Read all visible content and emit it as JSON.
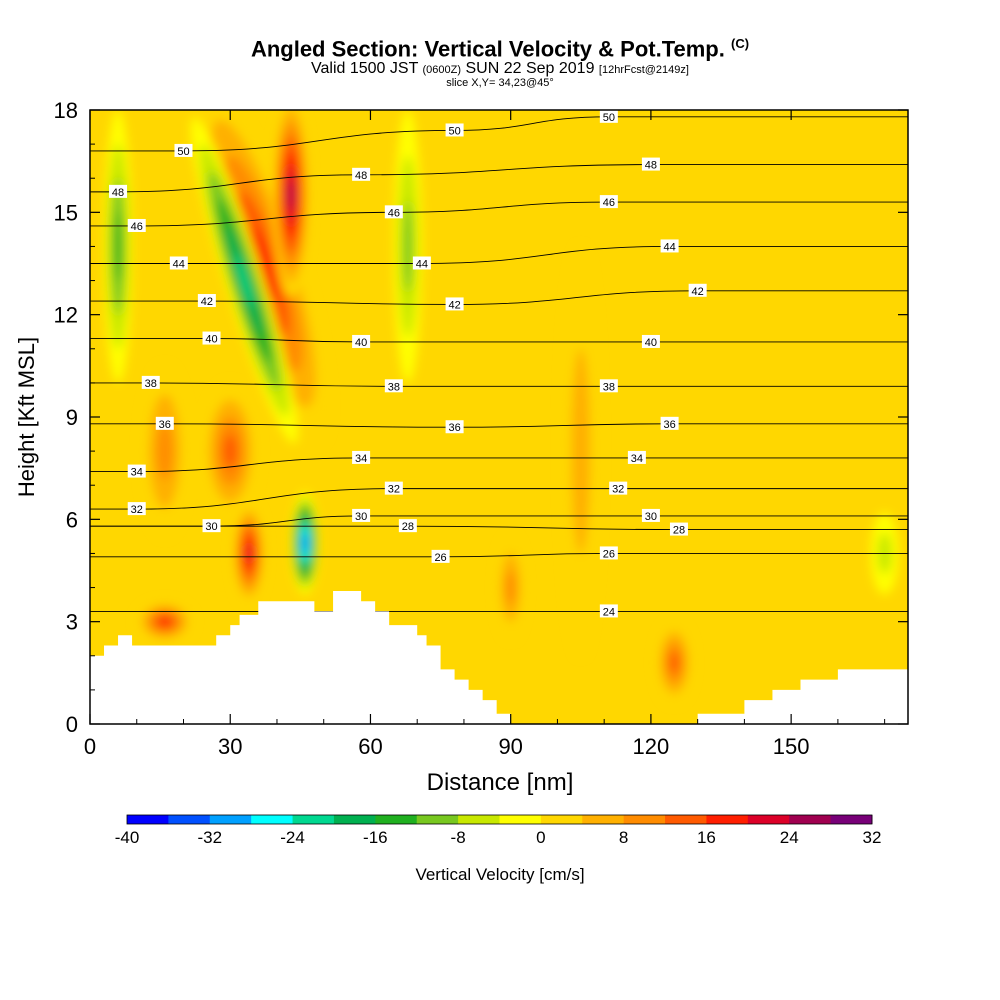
{
  "header": {
    "title": "Angled Section: Vertical Velocity & Pot.Temp.",
    "copyright": "(C)",
    "valid_prefix": "Valid 1500 JST",
    "utc": "(0600Z)",
    "valid_date": "SUN 22 Sep 2019",
    "forecast": "[12hrFcst@2149z]",
    "slice": "slice X,Y= 34,23@45°"
  },
  "chart_data": {
    "type": "heatmap",
    "xlabel": "Distance [nm]",
    "ylabel": "Height [Kft MSL]",
    "xlim": [
      0,
      175
    ],
    "ylim": [
      0,
      18
    ],
    "x_ticks": [
      0,
      30,
      60,
      90,
      120,
      150
    ],
    "y_ticks": [
      0,
      3,
      6,
      9,
      12,
      15,
      18
    ],
    "colorbar": {
      "label": "Vertical Velocity [cm/s]",
      "min": -40,
      "max": 32,
      "step": 4,
      "tick_values": [
        -40,
        -32,
        -24,
        -16,
        -8,
        0,
        8,
        16,
        24,
        32
      ],
      "colors": [
        "#0000ff",
        "#0050ff",
        "#00a0ff",
        "#00ffff",
        "#00d890",
        "#00b050",
        "#20b020",
        "#78c820",
        "#c8e800",
        "#ffff00",
        "#ffd700",
        "#ffb000",
        "#ff8c00",
        "#ff5a00",
        "#ff1e00",
        "#dc0028",
        "#a00050",
        "#780078"
      ]
    },
    "terrain_kft": [
      [
        0,
        2.0
      ],
      [
        3,
        2.0
      ],
      [
        3,
        2.3
      ],
      [
        6,
        2.3
      ],
      [
        6,
        2.6
      ],
      [
        9,
        2.6
      ],
      [
        9,
        2.3
      ],
      [
        27,
        2.3
      ],
      [
        27,
        2.6
      ],
      [
        30,
        2.6
      ],
      [
        30,
        2.9
      ],
      [
        32,
        2.9
      ],
      [
        32,
        3.2
      ],
      [
        36,
        3.2
      ],
      [
        36,
        3.6
      ],
      [
        48,
        3.6
      ],
      [
        48,
        3.3
      ],
      [
        52,
        3.3
      ],
      [
        52,
        3.9
      ],
      [
        58,
        3.9
      ],
      [
        58,
        3.6
      ],
      [
        61,
        3.6
      ],
      [
        61,
        3.3
      ],
      [
        64,
        3.3
      ],
      [
        64,
        2.9
      ],
      [
        70,
        2.9
      ],
      [
        70,
        2.6
      ],
      [
        72,
        2.6
      ],
      [
        72,
        2.3
      ],
      [
        75,
        2.3
      ],
      [
        75,
        1.6
      ],
      [
        78,
        1.6
      ],
      [
        78,
        1.3
      ],
      [
        81,
        1.3
      ],
      [
        81,
        1.0
      ],
      [
        84,
        1.0
      ],
      [
        84,
        0.7
      ],
      [
        87,
        0.7
      ],
      [
        87,
        0.3
      ],
      [
        90,
        0.3
      ],
      [
        90,
        0.0
      ],
      [
        130,
        0.0
      ],
      [
        130,
        0.3
      ],
      [
        140,
        0.3
      ],
      [
        140,
        0.7
      ],
      [
        146,
        0.7
      ],
      [
        146,
        1.0
      ],
      [
        152,
        1.0
      ],
      [
        152,
        1.3
      ],
      [
        160,
        1.3
      ],
      [
        160,
        1.6
      ],
      [
        175,
        1.6
      ]
    ],
    "updrafts": [
      {
        "x": 37,
        "y": 13.5,
        "rx": 8,
        "ry": 5.5,
        "v": 20,
        "tilt": -0.3
      },
      {
        "x": 43,
        "y": 15.5,
        "rx": 4,
        "ry": 3,
        "v": 28
      },
      {
        "x": 34,
        "y": 5,
        "rx": 3.5,
        "ry": 1.5,
        "v": 24
      },
      {
        "x": 30,
        "y": 8,
        "rx": 6,
        "ry": 2,
        "v": 14
      },
      {
        "x": 16,
        "y": 3,
        "rx": 6,
        "ry": 0.6,
        "v": 18
      },
      {
        "x": 16,
        "y": 8,
        "rx": 5,
        "ry": 2.5,
        "v": 10
      },
      {
        "x": 125,
        "y": 1.8,
        "rx": 4,
        "ry": 1.2,
        "v": 14
      },
      {
        "x": 90,
        "y": 4,
        "rx": 3,
        "ry": 1.5,
        "v": 12
      },
      {
        "x": 105,
        "y": 8,
        "rx": 4,
        "ry": 6,
        "v": 7
      }
    ],
    "downdrafts": [
      {
        "x": 46,
        "y": 5.3,
        "rx": 3,
        "ry": 1.5,
        "v": -36
      },
      {
        "x": 33,
        "y": 13,
        "rx": 4,
        "ry": 5,
        "v": -22,
        "tilt": -0.3
      },
      {
        "x": 6,
        "y": 14,
        "rx": 3,
        "ry": 4,
        "v": -14
      },
      {
        "x": 68,
        "y": 14,
        "rx": 3,
        "ry": 4,
        "v": -10
      },
      {
        "x": 170,
        "y": 5,
        "rx": 3,
        "ry": 1.2,
        "v": -8
      }
    ],
    "theta_labels": [
      {
        "value": "50",
        "x": 20,
        "y": 16.8
      },
      {
        "value": "48",
        "x": 6,
        "y": 15.6
      },
      {
        "value": "46",
        "x": 10,
        "y": 14.6
      },
      {
        "value": "44",
        "x": 19,
        "y": 13.5
      },
      {
        "value": "42",
        "x": 25,
        "y": 12.4
      },
      {
        "value": "40",
        "x": 26,
        "y": 11.3
      },
      {
        "value": "38",
        "x": 13,
        "y": 10.0
      },
      {
        "value": "36",
        "x": 16,
        "y": 8.8
      },
      {
        "value": "34",
        "x": 10,
        "y": 7.4
      },
      {
        "value": "32",
        "x": 10,
        "y": 6.3
      },
      {
        "value": "30",
        "x": 26,
        "y": 5.8
      },
      {
        "value": "48",
        "x": 58,
        "y": 16.1
      },
      {
        "value": "46",
        "x": 65,
        "y": 15.0
      },
      {
        "value": "44",
        "x": 71,
        "y": 13.5
      },
      {
        "value": "42",
        "x": 78,
        "y": 12.3
      },
      {
        "value": "40",
        "x": 58,
        "y": 11.2
      },
      {
        "value": "38",
        "x": 65,
        "y": 9.9
      },
      {
        "value": "36",
        "x": 78,
        "y": 8.7
      },
      {
        "value": "34",
        "x": 58,
        "y": 7.8
      },
      {
        "value": "32",
        "x": 65,
        "y": 6.9
      },
      {
        "value": "30",
        "x": 58,
        "y": 6.1
      },
      {
        "value": "28",
        "x": 68,
        "y": 5.8
      },
      {
        "value": "26",
        "x": 75,
        "y": 4.9
      },
      {
        "value": "50",
        "x": 78,
        "y": 17.4
      },
      {
        "value": "50",
        "x": 111,
        "y": 17.8
      },
      {
        "value": "48",
        "x": 120,
        "y": 16.4
      },
      {
        "value": "46",
        "x": 111,
        "y": 15.3
      },
      {
        "value": "44",
        "x": 124,
        "y": 14.0
      },
      {
        "value": "42",
        "x": 130,
        "y": 12.7
      },
      {
        "value": "40",
        "x": 120,
        "y": 11.2
      },
      {
        "value": "38",
        "x": 111,
        "y": 9.9
      },
      {
        "value": "36",
        "x": 124,
        "y": 8.8
      },
      {
        "value": "34",
        "x": 117,
        "y": 7.8
      },
      {
        "value": "32",
        "x": 113,
        "y": 6.9
      },
      {
        "value": "30",
        "x": 120,
        "y": 6.1
      },
      {
        "value": "28",
        "x": 126,
        "y": 5.7
      },
      {
        "value": "26",
        "x": 111,
        "y": 5.0
      },
      {
        "value": "24",
        "x": 111,
        "y": 3.3
      }
    ]
  }
}
